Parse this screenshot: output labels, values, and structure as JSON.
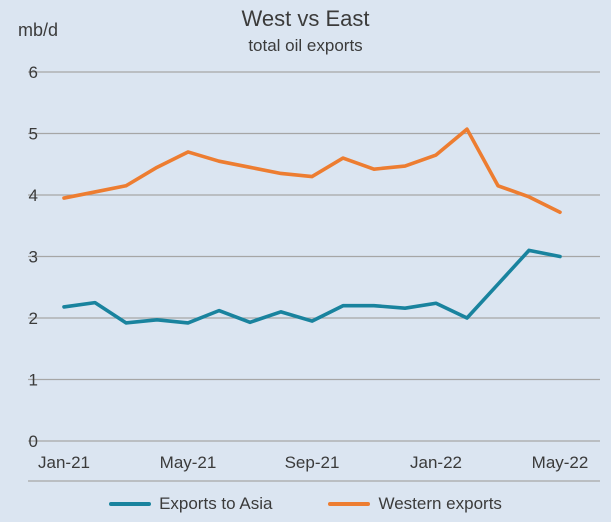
{
  "chart_data": {
    "type": "line",
    "title": "West vs East",
    "subtitle": "total oil exports",
    "unit": "mb/d",
    "x": [
      "Jan-21",
      "Feb-21",
      "Mar-21",
      "Apr-21",
      "May-21",
      "Jun-21",
      "Jul-21",
      "Aug-21",
      "Sep-21",
      "Oct-21",
      "Nov-21",
      "Dec-21",
      "Jan-22",
      "Feb-22",
      "Mar-22",
      "Apr-22",
      "May-22"
    ],
    "x_tick_labels": [
      "Jan-21",
      "May-21",
      "Sep-21",
      "Jan-22",
      "May-22"
    ],
    "x_tick_indices": [
      0,
      4,
      8,
      12,
      16
    ],
    "ylim": [
      0,
      6
    ],
    "y_tick_step": 1,
    "grid": "horizontal",
    "legend_position": "bottom",
    "series": [
      {
        "name": "Exports to Asia",
        "color": "#19839e",
        "values": [
          2.18,
          2.25,
          1.92,
          1.97,
          1.92,
          2.12,
          1.93,
          2.1,
          1.95,
          2.2,
          2.2,
          2.16,
          2.24,
          2.0,
          2.55,
          3.1,
          3.0
        ]
      },
      {
        "name": "Western exports",
        "color": "#ed7d31",
        "values": [
          3.95,
          4.05,
          4.15,
          4.45,
          4.7,
          4.55,
          4.45,
          4.35,
          4.3,
          4.6,
          4.42,
          4.47,
          4.65,
          5.07,
          4.15,
          3.97,
          3.72
        ]
      }
    ],
    "colors": {
      "background": "#dbe5f1",
      "grid": "#a6a6a6",
      "text": "#3b3b3b"
    }
  }
}
